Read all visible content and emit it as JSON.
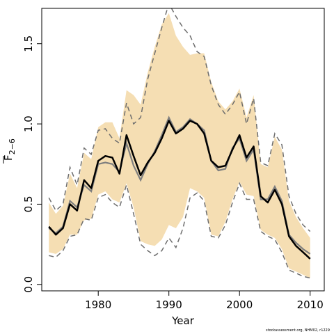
{
  "chart_data": {
    "type": "line",
    "xlabel": "Year",
    "ylabel_main": "F",
    "ylabel_sub": "2−6",
    "xlim": [
      1972,
      2012
    ],
    "ylim": [
      -0.04,
      1.72
    ],
    "xticks": [
      1980,
      1990,
      2000,
      2010
    ],
    "xtick_labels": [
      "1980",
      "1990",
      "2000",
      "2010"
    ],
    "yticks": [
      0.0,
      0.5,
      1.0,
      1.5
    ],
    "ytick_labels": [
      "0.0",
      "0.5",
      "1.0",
      "1.5"
    ],
    "x": [
      1973,
      1974,
      1975,
      1976,
      1977,
      1978,
      1979,
      1980,
      1981,
      1982,
      1983,
      1984,
      1985,
      1986,
      1987,
      1988,
      1989,
      1990,
      1991,
      1992,
      1993,
      1994,
      1995,
      1996,
      1997,
      1998,
      1999,
      2000,
      2001,
      2002,
      2003,
      2004,
      2005,
      2006,
      2007,
      2008,
      2009,
      2010
    ],
    "series": [
      {
        "role": "estimate",
        "values": [
          0.36,
          0.31,
          0.35,
          0.5,
          0.46,
          0.65,
          0.6,
          0.77,
          0.8,
          0.79,
          0.69,
          0.93,
          0.8,
          0.68,
          0.76,
          0.82,
          0.91,
          1.02,
          0.94,
          0.97,
          1.02,
          1.0,
          0.94,
          0.77,
          0.73,
          0.74,
          0.84,
          0.93,
          0.79,
          0.86,
          0.55,
          0.51,
          0.59,
          0.5,
          0.3,
          0.24,
          0.2,
          0.16
        ]
      },
      {
        "role": "alternate",
        "values": [
          0.35,
          0.32,
          0.36,
          0.52,
          0.48,
          0.62,
          0.58,
          0.75,
          0.76,
          0.75,
          0.7,
          0.88,
          0.74,
          0.65,
          0.75,
          0.83,
          0.93,
          1.04,
          0.95,
          0.98,
          1.03,
          1.0,
          0.96,
          0.77,
          0.71,
          0.72,
          0.85,
          0.91,
          0.77,
          0.84,
          0.53,
          0.53,
          0.61,
          0.52,
          0.31,
          0.26,
          0.22,
          0.19
        ]
      },
      {
        "role": "upper-bound",
        "values": [
          0.54,
          0.46,
          0.5,
          0.73,
          0.62,
          0.85,
          0.81,
          0.96,
          0.97,
          0.91,
          0.88,
          1.13,
          1.0,
          1.04,
          1.28,
          1.44,
          1.6,
          1.75,
          1.67,
          1.6,
          1.55,
          1.45,
          1.42,
          1.24,
          1.12,
          1.06,
          1.12,
          1.2,
          1.0,
          1.16,
          0.76,
          0.74,
          0.94,
          0.87,
          0.55,
          0.44,
          0.37,
          0.33
        ]
      },
      {
        "role": "lower-bound",
        "values": [
          0.18,
          0.17,
          0.21,
          0.3,
          0.31,
          0.41,
          0.4,
          0.54,
          0.56,
          0.51,
          0.48,
          0.62,
          0.44,
          0.25,
          0.21,
          0.18,
          0.21,
          0.29,
          0.23,
          0.35,
          0.54,
          0.57,
          0.52,
          0.3,
          0.29,
          0.37,
          0.51,
          0.63,
          0.53,
          0.53,
          0.33,
          0.3,
          0.28,
          0.2,
          0.09,
          0.07,
          0.05,
          0.04
        ]
      },
      {
        "role": "band-upper",
        "values": [
          0.51,
          0.44,
          0.49,
          0.69,
          0.6,
          0.82,
          0.78,
          0.98,
          1.01,
          1.01,
          0.91,
          1.21,
          1.18,
          1.12,
          1.32,
          1.48,
          1.62,
          1.69,
          1.55,
          1.48,
          1.43,
          1.44,
          1.44,
          1.26,
          1.14,
          1.09,
          1.14,
          1.22,
          1.04,
          1.18,
          0.75,
          0.73,
          0.92,
          0.84,
          0.52,
          0.42,
          0.35,
          0.29
        ]
      },
      {
        "role": "band-lower",
        "values": [
          0.2,
          0.19,
          0.22,
          0.31,
          0.31,
          0.4,
          0.41,
          0.56,
          0.58,
          0.53,
          0.51,
          0.63,
          0.48,
          0.27,
          0.25,
          0.24,
          0.28,
          0.37,
          0.35,
          0.42,
          0.6,
          0.58,
          0.54,
          0.31,
          0.3,
          0.39,
          0.53,
          0.64,
          0.56,
          0.55,
          0.34,
          0.31,
          0.29,
          0.22,
          0.1,
          0.08,
          0.06,
          0.04
        ]
      }
    ],
    "colors": {
      "band": "#F5DEB3",
      "estimate": "#000000",
      "alternate": "#7f7f7f",
      "bounds": "#6e6e6e"
    },
    "grid": false,
    "legend": "none"
  },
  "footer": {
    "credit": "stockassessment.org, NHM02, r1229"
  }
}
